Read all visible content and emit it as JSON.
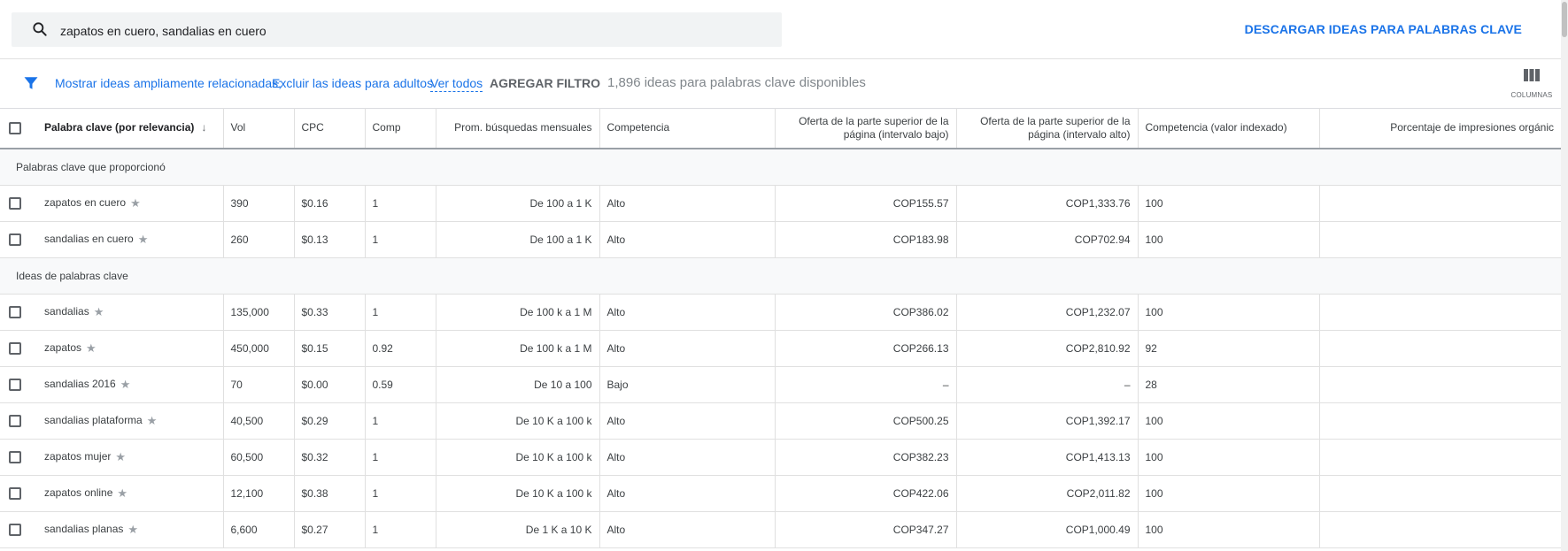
{
  "search": {
    "value": "zapatos en cuero, sandalias en cuero"
  },
  "header": {
    "download_label": "DESCARGAR IDEAS PARA PALABRAS CLAVE"
  },
  "filters": {
    "broad": "Mostrar ideas ampliamente relacionadas;",
    "adult": "Excluir las ideas para adultos",
    "see_all": "Ver todos",
    "add_filter": "AGREGAR FILTRO",
    "count": "1,896 ideas para palabras clave disponibles",
    "columns_label": "COLUMNAS"
  },
  "table": {
    "columns": {
      "keyword": "Palabra clave (por relevancia)",
      "vol": "Vol",
      "cpc": "CPC",
      "comp": "Comp",
      "avg_searches": "Prom. búsquedas mensuales",
      "competition": "Competencia",
      "bid_low": "Oferta de la parte superior de la página (intervalo bajo)",
      "bid_high": "Oferta de la parte superior de la página (intervalo alto)",
      "competition_index": "Competencia (valor indexado)",
      "organic_impr": "Porcentaje de impresiones orgánic"
    },
    "sections": [
      {
        "title": "Palabras clave que proporcionó",
        "rows": [
          {
            "keyword": "zapatos en cuero",
            "vol": "390",
            "cpc": "$0.16",
            "comp": "1",
            "avg": "De 100 a 1 K",
            "competition": "Alto",
            "low": "COP155.57",
            "high": "COP1,333.76",
            "index": "100"
          },
          {
            "keyword": "sandalias en cuero",
            "vol": "260",
            "cpc": "$0.13",
            "comp": "1",
            "avg": "De 100 a 1 K",
            "competition": "Alto",
            "low": "COP183.98",
            "high": "COP702.94",
            "index": "100"
          }
        ]
      },
      {
        "title": "Ideas de palabras clave",
        "rows": [
          {
            "keyword": "sandalias",
            "vol": "135,000",
            "cpc": "$0.33",
            "comp": "1",
            "avg": "De 100 k a 1 M",
            "competition": "Alto",
            "low": "COP386.02",
            "high": "COP1,232.07",
            "index": "100"
          },
          {
            "keyword": "zapatos",
            "vol": "450,000",
            "cpc": "$0.15",
            "comp": "0.92",
            "avg": "De 100 k a 1 M",
            "competition": "Alto",
            "low": "COP266.13",
            "high": "COP2,810.92",
            "index": "92"
          },
          {
            "keyword": "sandalias 2016",
            "vol": "70",
            "cpc": "$0.00",
            "comp": "0.59",
            "avg": "De 10 a 100",
            "competition": "Bajo",
            "low": "–",
            "high": "–",
            "index": "28"
          },
          {
            "keyword": "sandalias plataforma",
            "vol": "40,500",
            "cpc": "$0.29",
            "comp": "1",
            "avg": "De 10 K a 100 k",
            "competition": "Alto",
            "low": "COP500.25",
            "high": "COP1,392.17",
            "index": "100"
          },
          {
            "keyword": "zapatos mujer",
            "vol": "60,500",
            "cpc": "$0.32",
            "comp": "1",
            "avg": "De 10 K a 100 k",
            "competition": "Alto",
            "low": "COP382.23",
            "high": "COP1,413.13",
            "index": "100"
          },
          {
            "keyword": "zapatos online",
            "vol": "12,100",
            "cpc": "$0.38",
            "comp": "1",
            "avg": "De 10 K a 100 k",
            "competition": "Alto",
            "low": "COP422.06",
            "high": "COP2,011.82",
            "index": "100"
          },
          {
            "keyword": "sandalias planas",
            "vol": "6,600",
            "cpc": "$0.27",
            "comp": "1",
            "avg": "De 1 K a 10 K",
            "competition": "Alto",
            "low": "COP347.27",
            "high": "COP1,000.49",
            "index": "100"
          }
        ]
      }
    ]
  }
}
